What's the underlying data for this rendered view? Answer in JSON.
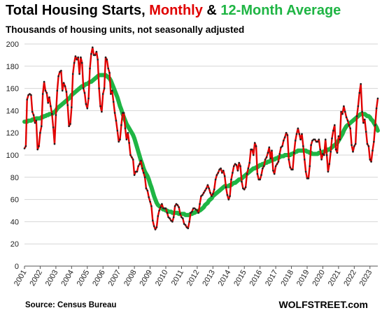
{
  "title": {
    "part1": "Total Housing Starts, ",
    "part2": "Monthly",
    "part3": " & ",
    "part4": "12-Month Average"
  },
  "subtitle": "Thousands of housing units, not seasonally adjusted",
  "source": "Source: Census Bureau",
  "brand": "WOLFSTREET.com",
  "colors": {
    "monthly": "#e00000",
    "average": "#1fb544",
    "dots": "#222222"
  },
  "chart_data": {
    "type": "line",
    "title": "Total Housing Starts, Monthly & 12-Month Average",
    "subtitle": "Thousands of housing units, not seasonally adjusted",
    "xlabel": "",
    "ylabel": "",
    "ylim": [
      0,
      200
    ],
    "yticks": [
      0,
      20,
      40,
      60,
      80,
      100,
      120,
      140,
      160,
      180,
      200
    ],
    "xticks": [
      "2001",
      "2002",
      "2003",
      "2004",
      "2005",
      "2006",
      "2007",
      "2008",
      "2009",
      "2010",
      "2011",
      "2012",
      "2013",
      "2014",
      "2015",
      "2016",
      "2017",
      "2018",
      "2019",
      "2020",
      "2021",
      "2022",
      "2023"
    ],
    "grid": "horizontal",
    "legend": "in title",
    "x_start": "2001-01",
    "series": [
      {
        "name": "Monthly",
        "values": [
          106,
          108,
          150,
          154,
          155,
          154,
          139,
          136,
          129,
          131,
          105,
          108,
          120,
          126,
          155,
          166,
          158,
          156,
          147,
          152,
          144,
          137,
          125,
          110,
          136,
          158,
          171,
          175,
          176,
          158,
          165,
          162,
          157,
          145,
          126,
          128,
          143,
          173,
          183,
          189,
          186,
          188,
          173,
          188,
          183,
          160,
          156,
          146,
          142,
          151,
          178,
          191,
          197,
          190,
          190,
          193,
          186,
          160,
          144,
          139,
          155,
          160,
          188,
          186,
          178,
          174,
          155,
          158,
          148,
          138,
          131,
          122,
          112,
          114,
          127,
          138,
          138,
          124,
          114,
          120,
          111,
          100,
          98,
          96,
          82,
          85,
          85,
          90,
          92,
          95,
          88,
          84,
          80,
          70,
          68,
          62,
          58,
          54,
          41,
          36,
          33,
          35,
          45,
          50,
          53,
          56,
          52,
          52,
          52,
          48,
          44,
          43,
          41,
          40,
          44,
          54,
          56,
          55,
          53,
          47,
          44,
          43,
          38,
          37,
          35,
          34,
          40,
          48,
          49,
          52,
          52,
          51,
          50,
          48,
          56,
          63,
          64,
          66,
          68,
          70,
          73,
          70,
          66,
          63,
          65,
          69,
          78,
          82,
          84,
          87,
          88,
          84,
          86,
          81,
          71,
          64,
          60,
          63,
          78,
          84,
          90,
          92,
          91,
          86,
          93,
          90,
          76,
          70,
          69,
          71,
          83,
          88,
          93,
          105,
          105,
          100,
          111,
          108,
          83,
          78,
          78,
          82,
          88,
          90,
          96,
          98,
          102,
          107,
          97,
          104,
          86,
          83,
          90,
          92,
          94,
          101,
          107,
          108,
          113,
          116,
          120,
          118,
          96,
          89,
          87,
          87,
          102,
          113,
          119,
          124,
          119,
          114,
          119,
          108,
          96,
          85,
          79,
          79,
          90,
          109,
          113,
          114,
          114,
          112,
          112,
          114,
          105,
          96,
          101,
          100,
          114,
          100,
          85,
          92,
          103,
          115,
          122,
          127,
          105,
          102,
          117,
          114,
          139,
          137,
          144,
          139,
          134,
          131,
          127,
          124,
          109,
          103,
          108,
          110,
          135,
          144,
          156,
          164,
          139,
          129,
          132,
          121,
          110,
          108,
          96,
          94,
          104,
          112,
          127,
          142,
          151
        ]
      },
      {
        "name": "12-Month Average",
        "values": [
          130,
          130,
          130,
          131,
          131,
          131,
          132,
          132,
          132,
          133,
          133,
          133,
          133,
          134,
          134,
          135,
          135,
          136,
          136,
          137,
          137,
          137,
          138,
          139,
          140,
          142,
          143,
          144,
          145,
          146,
          147,
          148,
          149,
          150,
          151,
          152,
          154,
          155,
          156,
          157,
          158,
          159,
          160,
          161,
          162,
          162,
          163,
          164,
          164,
          165,
          166,
          166,
          167,
          168,
          169,
          170,
          171,
          172,
          172,
          172,
          172,
          172,
          172,
          171,
          170,
          169,
          167,
          164,
          161,
          158,
          155,
          152,
          148,
          144,
          141,
          137,
          134,
          131,
          128,
          126,
          124,
          122,
          120,
          118,
          115,
          111,
          107,
          103,
          99,
          95,
          92,
          88,
          85,
          83,
          81,
          78,
          74,
          71,
          67,
          63,
          60,
          57,
          55,
          54,
          53,
          52,
          51,
          51,
          50,
          50,
          49,
          49,
          49,
          48,
          48,
          48,
          48,
          48,
          47,
          47,
          47,
          47,
          47,
          46,
          46,
          46,
          46,
          47,
          47,
          48,
          48,
          49,
          49,
          50,
          50,
          51,
          52,
          53,
          55,
          56,
          57,
          59,
          60,
          61,
          63,
          64,
          65,
          66,
          67,
          68,
          69,
          70,
          71,
          72,
          72,
          72,
          72,
          73,
          73,
          74,
          75,
          75,
          76,
          77,
          78,
          78,
          79,
          80,
          81,
          82,
          83,
          84,
          85,
          86,
          87,
          88,
          88,
          89,
          89,
          90,
          91,
          91,
          92,
          92,
          93,
          93,
          94,
          94,
          95,
          95,
          96,
          96,
          97,
          97,
          98,
          98,
          99,
          99,
          99,
          100,
          100,
          100,
          100,
          100,
          101,
          101,
          102,
          103,
          103,
          104,
          104,
          104,
          104,
          104,
          104,
          104,
          103,
          103,
          102,
          102,
          101,
          101,
          101,
          101,
          101,
          102,
          102,
          102,
          103,
          103,
          104,
          104,
          105,
          105,
          106,
          107,
          108,
          109,
          110,
          111,
          113,
          115,
          117,
          119,
          122,
          124,
          126,
          127,
          128,
          129,
          130,
          131,
          132,
          133,
          134,
          135,
          136,
          137,
          137,
          137,
          137,
          136,
          135,
          135,
          134,
          132,
          131,
          129,
          127,
          125,
          122
        ]
      }
    ]
  }
}
